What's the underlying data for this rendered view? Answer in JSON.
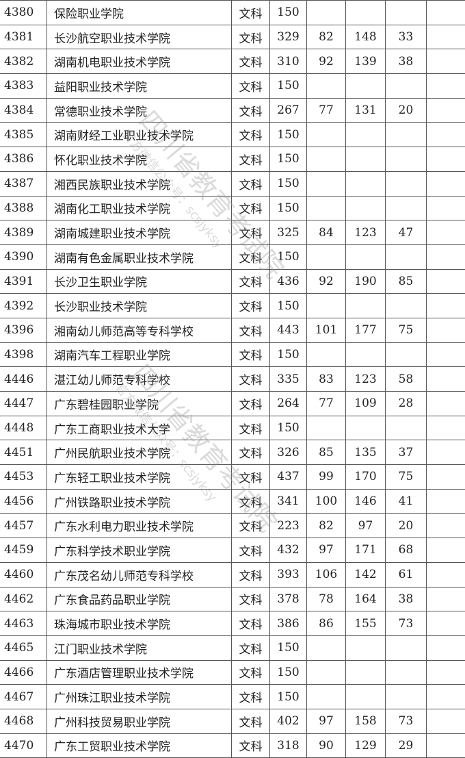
{
  "table": {
    "rows": [
      [
        "4380",
        "保险职业学院",
        "文科",
        "150",
        "",
        "",
        ""
      ],
      [
        "4381",
        "长沙航空职业技术学院",
        "文科",
        "329",
        "82",
        "148",
        "33"
      ],
      [
        "4382",
        "湖南机电职业技术学院",
        "文科",
        "310",
        "92",
        "139",
        "38"
      ],
      [
        "4383",
        "益阳职业技术学院",
        "文科",
        "150",
        "",
        "",
        ""
      ],
      [
        "4384",
        "常德职业技术学院",
        "文科",
        "267",
        "77",
        "131",
        "20"
      ],
      [
        "4385",
        "湖南财经工业职业技术学院",
        "文科",
        "150",
        "",
        "",
        ""
      ],
      [
        "4386",
        "怀化职业技术学院",
        "文科",
        "150",
        "",
        "",
        ""
      ],
      [
        "4387",
        "湘西民族职业技术学院",
        "文科",
        "150",
        "",
        "",
        ""
      ],
      [
        "4388",
        "湖南化工职业技术学院",
        "文科",
        "150",
        "",
        "",
        ""
      ],
      [
        "4389",
        "湖南城建职业技术学院",
        "文科",
        "325",
        "84",
        "123",
        "47"
      ],
      [
        "4390",
        "湖南有色金属职业技术学院",
        "文科",
        "150",
        "",
        "",
        ""
      ],
      [
        "4391",
        "长沙卫生职业学院",
        "文科",
        "436",
        "92",
        "190",
        "85"
      ],
      [
        "4392",
        "长沙职业技术学院",
        "文科",
        "150",
        "",
        "",
        ""
      ],
      [
        "4396",
        "湘南幼儿师范高等专科学校",
        "文科",
        "443",
        "101",
        "177",
        "75"
      ],
      [
        "4398",
        "湖南汽车工程职业学院",
        "文科",
        "150",
        "",
        "",
        ""
      ],
      [
        "4446",
        "湛江幼儿师范专科学校",
        "文科",
        "335",
        "83",
        "123",
        "58"
      ],
      [
        "4447",
        "广东碧桂园职业学院",
        "文科",
        "264",
        "77",
        "109",
        "28"
      ],
      [
        "4448",
        "广东工商职业技术大学",
        "文科",
        "150",
        "",
        "",
        ""
      ],
      [
        "4451",
        "广州民航职业技术学院",
        "文科",
        "326",
        "85",
        "135",
        "37"
      ],
      [
        "4453",
        "广东轻工职业技术学院",
        "文科",
        "437",
        "99",
        "170",
        "75"
      ],
      [
        "4456",
        "广州铁路职业技术学院",
        "文科",
        "341",
        "100",
        "146",
        "41"
      ],
      [
        "4457",
        "广东水利电力职业技术学院",
        "文科",
        "223",
        "82",
        "97",
        "20"
      ],
      [
        "4459",
        "广东科学技术职业学院",
        "文科",
        "432",
        "97",
        "171",
        "68"
      ],
      [
        "4460",
        "广东茂名幼儿师范专科学校",
        "文科",
        "393",
        "106",
        "142",
        "61"
      ],
      [
        "4462",
        "广东食品药品职业学院",
        "文科",
        "378",
        "78",
        "164",
        "38"
      ],
      [
        "4463",
        "珠海城市职业技术学院",
        "文科",
        "386",
        "86",
        "155",
        "73"
      ],
      [
        "4465",
        "江门职业技术学院",
        "文科",
        "150",
        "",
        "",
        ""
      ],
      [
        "4466",
        "广东酒店管理职业技术学院",
        "文科",
        "150",
        "",
        "",
        ""
      ],
      [
        "4467",
        "广州珠江职业技术学院",
        "文科",
        "150",
        "",
        "",
        ""
      ],
      [
        "4468",
        "广州科技贸易职业学院",
        "文科",
        "402",
        "97",
        "158",
        "73"
      ],
      [
        "4470",
        "广东工贸职业技术学院",
        "文科",
        "318",
        "90",
        "129",
        "29"
      ]
    ]
  },
  "watermark": {
    "line1": "四川省教育考试院",
    "line2": "官方微信公众号：scsjyksy"
  }
}
